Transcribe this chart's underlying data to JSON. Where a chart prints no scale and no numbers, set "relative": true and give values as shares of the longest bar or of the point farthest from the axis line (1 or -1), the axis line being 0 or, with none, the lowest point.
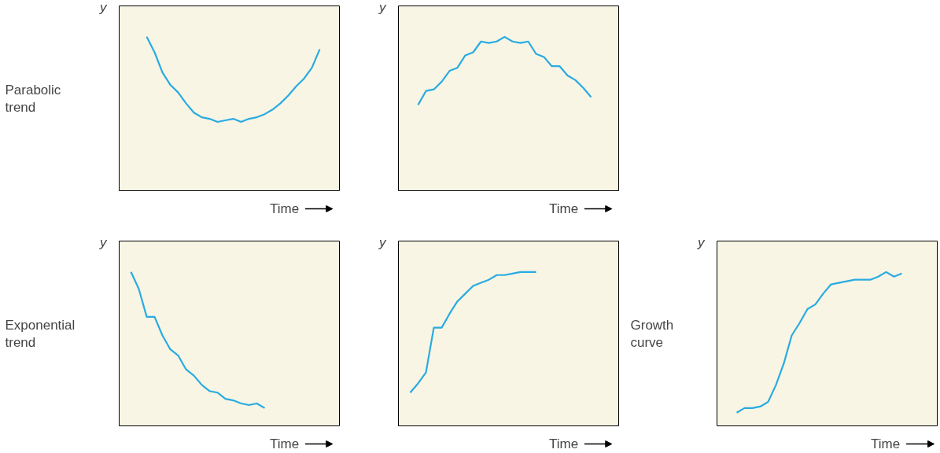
{
  "chart_data": [
    {
      "type": "line",
      "relative": true,
      "title": "Parabolic trend",
      "xlabel": "Time",
      "ylabel": "y",
      "tick_labels": false,
      "categories": [
        null,
        null,
        null,
        null,
        null,
        null,
        null,
        null,
        null,
        null,
        null,
        null,
        null,
        null,
        null,
        null,
        null,
        null,
        null,
        null,
        null,
        null,
        null,
        null,
        null,
        null,
        null,
        null
      ],
      "series": [
        {
          "color": "#29abe2",
          "values": [
            null,
            null,
            null,
            1.0,
            0.9,
            0.77,
            0.69,
            0.64,
            0.57,
            0.51,
            0.48,
            0.47,
            0.45,
            0.46,
            0.47,
            0.45,
            0.47,
            0.48,
            0.5,
            0.53,
            0.57,
            0.62,
            0.68,
            0.73,
            0.8,
            0.92,
            null,
            null
          ]
        }
      ]
    },
    {
      "type": "line",
      "relative": true,
      "xlabel": "Time",
      "ylabel": "y",
      "tick_labels": false,
      "categories": [
        null,
        null,
        null,
        null,
        null,
        null,
        null,
        null,
        null,
        null,
        null,
        null,
        null,
        null,
        null,
        null,
        null,
        null,
        null,
        null,
        null,
        null,
        null,
        null,
        null,
        null,
        null,
        null
      ],
      "series": [
        {
          "color": "#29abe2",
          "values": [
            null,
            null,
            0.56,
            0.65,
            0.66,
            0.71,
            0.78,
            0.8,
            0.88,
            0.9,
            0.97,
            0.96,
            0.97,
            1.0,
            0.97,
            0.96,
            0.97,
            0.89,
            0.87,
            0.81,
            0.81,
            0.75,
            0.72,
            0.67,
            0.61,
            null,
            null,
            null
          ]
        }
      ]
    },
    {
      "type": "line",
      "relative": true,
      "title": "Exponential trend",
      "xlabel": "Time",
      "ylabel": "y",
      "tick_labels": false,
      "categories": [
        null,
        null,
        null,
        null,
        null,
        null,
        null,
        null,
        null,
        null,
        null,
        null,
        null,
        null,
        null,
        null,
        null,
        null,
        null,
        null,
        null,
        null,
        null,
        null,
        null,
        null,
        null,
        null
      ],
      "series": [
        {
          "color": "#29abe2",
          "values": [
            null,
            1.0,
            0.89,
            0.71,
            0.71,
            0.59,
            0.5,
            0.46,
            0.37,
            0.33,
            0.27,
            0.23,
            0.22,
            0.18,
            0.17,
            0.15,
            0.14,
            0.15,
            0.12,
            null,
            null,
            null,
            null,
            null,
            null,
            null,
            null,
            null
          ]
        }
      ]
    },
    {
      "type": "line",
      "relative": true,
      "xlabel": "Time",
      "ylabel": "y",
      "tick_labels": false,
      "categories": [
        null,
        null,
        null,
        null,
        null,
        null,
        null,
        null,
        null,
        null,
        null,
        null,
        null,
        null,
        null,
        null,
        null,
        null,
        null,
        null,
        null,
        null,
        null,
        null,
        null,
        null,
        null,
        null
      ],
      "series": [
        {
          "color": "#29abe2",
          "values": [
            null,
            0.22,
            0.28,
            0.35,
            0.64,
            0.64,
            0.73,
            0.81,
            0.86,
            0.91,
            0.93,
            0.95,
            0.98,
            0.98,
            0.99,
            1.0,
            1.0,
            1.0,
            null,
            null,
            null,
            null,
            null,
            null,
            null,
            null,
            null,
            null
          ]
        }
      ]
    },
    {
      "type": "line",
      "relative": true,
      "title": "Growth curve",
      "xlabel": "Time",
      "ylabel": "y",
      "tick_labels": false,
      "categories": [
        null,
        null,
        null,
        null,
        null,
        null,
        null,
        null,
        null,
        null,
        null,
        null,
        null,
        null,
        null,
        null,
        null,
        null,
        null,
        null,
        null,
        null,
        null,
        null,
        null,
        null,
        null,
        null
      ],
      "series": [
        {
          "color": "#29abe2",
          "values": [
            null,
            null,
            0.09,
            0.12,
            0.12,
            0.13,
            0.16,
            0.27,
            0.41,
            0.59,
            0.67,
            0.76,
            0.79,
            0.86,
            0.92,
            0.93,
            0.94,
            0.95,
            0.95,
            0.95,
            0.97,
            1.0,
            0.97,
            0.99,
            null,
            null,
            null,
            null
          ]
        }
      ]
    }
  ]
}
